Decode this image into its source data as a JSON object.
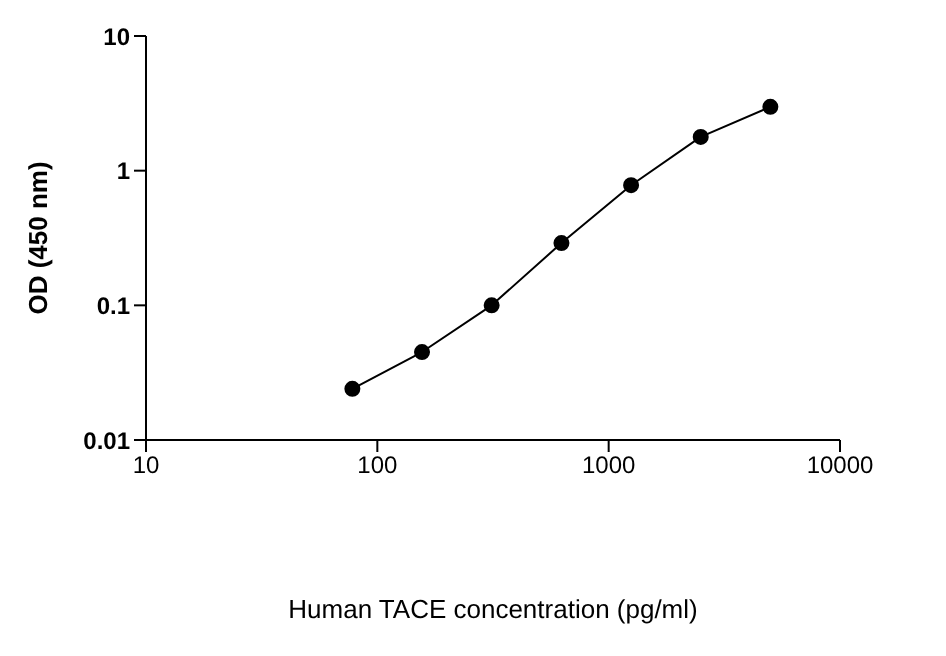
{
  "chart_data": {
    "type": "line",
    "xlabel": "Human TACE concentration (pg/ml)",
    "ylabel": "OD (450 nm)",
    "x": [
      78,
      156,
      312,
      625,
      1250,
      2500,
      5000
    ],
    "series": [
      {
        "color": "#000000",
        "values": [
          0.024,
          0.045,
          0.1,
          0.29,
          0.78,
          1.78,
          2.98
        ]
      }
    ],
    "xlim": [
      10,
      10000
    ],
    "xticks": [
      10,
      100,
      1000,
      10000
    ],
    "ylim": [
      0.01,
      10
    ],
    "yticks": [
      0.01,
      0.1,
      1,
      10
    ],
    "log": "xy",
    "grid": false,
    "legend": false,
    "marker": "circle",
    "line_style": "solid"
  }
}
